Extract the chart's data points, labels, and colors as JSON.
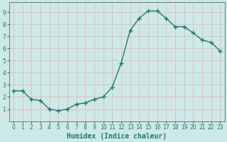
{
  "x": [
    0,
    1,
    2,
    3,
    4,
    5,
    6,
    7,
    8,
    9,
    10,
    11,
    12,
    13,
    14,
    15,
    16,
    17,
    18,
    19,
    20,
    21,
    22,
    23
  ],
  "y": [
    2.5,
    2.5,
    1.8,
    1.7,
    1.0,
    0.85,
    1.0,
    1.4,
    1.5,
    1.8,
    2.0,
    2.8,
    4.8,
    7.5,
    8.5,
    9.1,
    9.1,
    8.5,
    7.8,
    7.8,
    7.3,
    6.7,
    6.5,
    5.8
  ],
  "line_color": "#1a7a6e",
  "marker": "+",
  "marker_size": 4,
  "marker_linewidth": 1.0,
  "bg_color": "#cce9e7",
  "grid_color": "#e8b8b8",
  "xlabel": "Humidex (Indice chaleur)",
  "xlabel_fontsize": 7,
  "xlabel_bold": true,
  "xlim": [
    -0.5,
    23.5
  ],
  "ylim": [
    0,
    9.8
  ],
  "yticks": [
    1,
    2,
    3,
    4,
    5,
    6,
    7,
    8,
    9
  ],
  "xticks": [
    0,
    1,
    2,
    3,
    4,
    5,
    6,
    7,
    8,
    9,
    10,
    11,
    12,
    13,
    14,
    15,
    16,
    17,
    18,
    19,
    20,
    21,
    22,
    23
  ],
  "tick_fontsize": 5.5,
  "linewidth": 1.0,
  "spine_color": "#666666"
}
